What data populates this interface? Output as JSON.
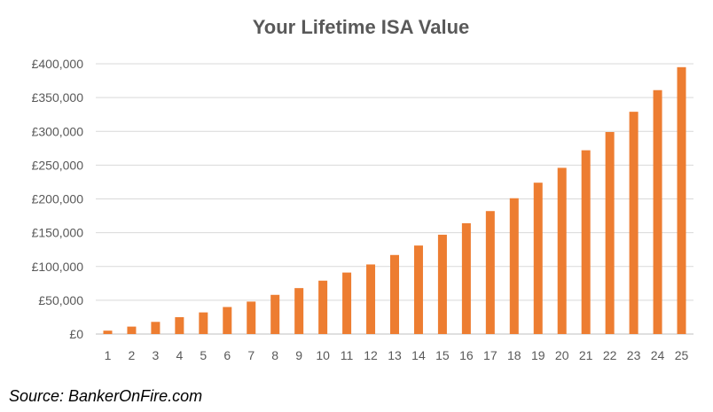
{
  "chart_data": {
    "type": "bar",
    "title": "Your Lifetime ISA Value",
    "xlabel": "",
    "ylabel": "",
    "categories": [
      "1",
      "2",
      "3",
      "4",
      "5",
      "6",
      "7",
      "8",
      "9",
      "10",
      "11",
      "12",
      "13",
      "14",
      "15",
      "16",
      "17",
      "18",
      "19",
      "20",
      "21",
      "22",
      "23",
      "24",
      "25"
    ],
    "series": [
      {
        "values": [
          5000,
          11000,
          18000,
          25000,
          32000,
          40000,
          48000,
          58000,
          68000,
          79000,
          91000,
          103000,
          117000,
          131000,
          147000,
          164000,
          182000,
          201000,
          224000,
          246000,
          272000,
          299000,
          329000,
          361000,
          395000
        ]
      }
    ],
    "ylim": [
      0,
      400000
    ],
    "yticks": [
      "£0",
      "£50,000",
      "£100,000",
      "£150,000",
      "£200,000",
      "£250,000",
      "£300,000",
      "£350,000",
      "£400,000"
    ],
    "ytick_values": [
      0,
      50000,
      100000,
      150000,
      200000,
      250000,
      300000,
      350000,
      400000
    ],
    "grid": true,
    "legend": "none",
    "bar_color": "#ed7d31"
  },
  "source_text": "Source: BankerOnFire.com"
}
